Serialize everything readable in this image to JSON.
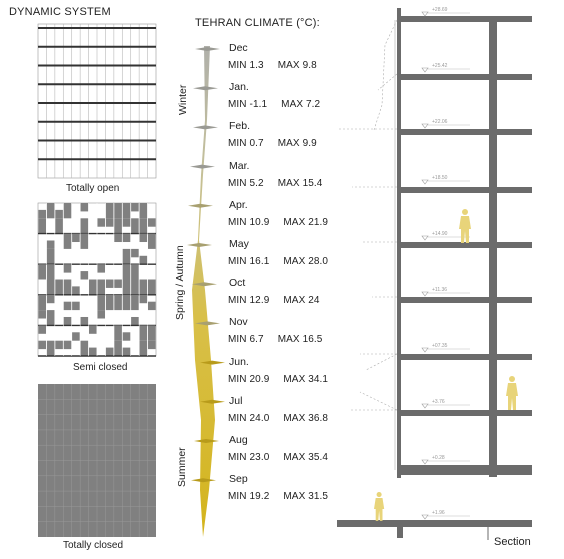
{
  "title": "DYNAMIC SYSTEM",
  "panels": {
    "open": "Totally open",
    "semi": "Semi closed",
    "closed": "Totally closed"
  },
  "climate": {
    "title": "TEHRAN CLIMATE (°C):",
    "seasons": {
      "winter": "Winter",
      "spring_autumn": "Spring / Autumn",
      "summer": "Summer"
    },
    "months": [
      {
        "name": "Dec",
        "min": "MIN 1.3",
        "max": "MAX 9.8"
      },
      {
        "name": "Jan.",
        "min": "MIN -1.1",
        "max": "MAX 7.2"
      },
      {
        "name": "Feb.",
        "min": "MIN 0.7",
        "max": "MAX 9.9"
      },
      {
        "name": "Mar.",
        "min": "MIN 5.2",
        "max": "MAX 15.4"
      },
      {
        "name": "Apr.",
        "min": "MIN 10.9",
        "max": "MAX 21.9"
      },
      {
        "name": "May",
        "min": "MIN 16.1",
        "max": "MAX 28.0"
      },
      {
        "name": "Oct",
        "min": "MIN 12.9",
        "max": "MAX 24"
      },
      {
        "name": "Nov",
        "min": "MIN 6.7",
        "max": "MAX 16.5"
      },
      {
        "name": "Jun.",
        "min": "MIN 20.9",
        "max": "MAX 34.1"
      },
      {
        "name": "Jul",
        "min": "MIN 24.0",
        "max": "MAX 36.8"
      },
      {
        "name": "Aug",
        "min": "MIN 23.0",
        "max": "MAX 35.4"
      },
      {
        "name": "Sep",
        "min": "MIN 19.2",
        "max": "MAX 31.5"
      }
    ]
  },
  "section": {
    "label": "Section",
    "levels": [
      "+28.69",
      "+25.42",
      "+22.06",
      "+18.50",
      "+14.90",
      "+11.36",
      "+07.35",
      "+3.76",
      "+0.28",
      "+1.96"
    ]
  },
  "colors": {
    "panel_gray": "#808080",
    "grid_line": "#b8b8b8",
    "winter": "#b5b5ad",
    "summer": "#d9bf2a",
    "slab": "#6b6b6b",
    "figure": "#e8d47a"
  }
}
